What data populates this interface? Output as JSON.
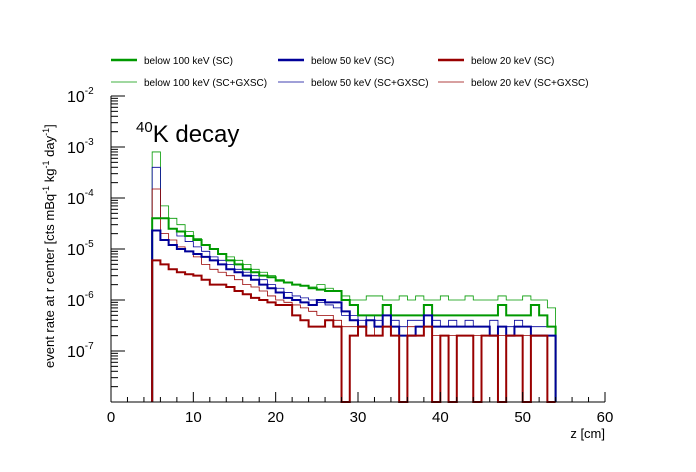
{
  "chart_data": {
    "type": "line",
    "title": "",
    "annotation": {
      "isotope_mass": "40",
      "text": "K decay"
    },
    "xlabel": "z [cm]",
    "ylabel": "event rate at r center [cts mBq",
    "ylabel_sup1": "-1",
    "ylabel_mid": " kg",
    "ylabel_sup2": "-1",
    "ylabel_end": " day",
    "ylabel_sup3": "-1",
    "ylabel_close": "]",
    "xlim": [
      0,
      60
    ],
    "ylim": [
      1e-08,
      0.01
    ],
    "yscale": "log",
    "grid": false,
    "legend_position": "top",
    "x_ticks": [
      {
        "v": 0,
        "label": "0"
      },
      {
        "v": 10,
        "label": "10"
      },
      {
        "v": 20,
        "label": "20"
      },
      {
        "v": 30,
        "label": "30"
      },
      {
        "v": 40,
        "label": "40"
      },
      {
        "v": 50,
        "label": "50"
      },
      {
        "v": 60,
        "label": "60"
      }
    ],
    "y_ticks": [
      {
        "v": 1e-07,
        "base": "10",
        "exp": "-7"
      },
      {
        "v": 1e-06,
        "base": "10",
        "exp": "-6"
      },
      {
        "v": 1e-05,
        "base": "10",
        "exp": "-5"
      },
      {
        "v": 0.0001,
        "base": "10",
        "exp": "-4"
      },
      {
        "v": 0.001,
        "base": "10",
        "exp": "-3"
      },
      {
        "v": 0.01,
        "base": "10",
        "exp": "-2"
      }
    ],
    "bin_edges_start": 5,
    "bin_width": 1,
    "series": [
      {
        "name": "below 100 keV (SC)",
        "color": "#009900",
        "style": "thick",
        "values": [
          4e-05,
          4e-05,
          2.5e-05,
          2.2e-05,
          1.8e-05,
          1.5e-05,
          1.2e-05,
          1e-05,
          8e-06,
          6e-06,
          5e-06,
          4e-06,
          3.5e-06,
          3e-06,
          2.8e-06,
          2.4e-06,
          2.2e-06,
          2e-06,
          1.9e-06,
          1.7e-06,
          1.6e-06,
          1.5e-06,
          1.5e-06,
          1e-06,
          8e-07,
          5e-07,
          5e-07,
          5e-07,
          8e-07,
          5e-07,
          5e-07,
          5e-07,
          5e-07,
          8e-07,
          5e-07,
          5e-07,
          5e-07,
          5e-07,
          5e-07,
          5e-07,
          5e-07,
          5e-07,
          8e-07,
          5e-07,
          5e-07,
          5e-07,
          8e-07,
          5e-07,
          3e-07
        ]
      },
      {
        "name": "below 50 keV (SC)",
        "color": "#000099",
        "style": "thick",
        "values": [
          2.3e-05,
          1.5e-05,
          1.2e-05,
          1e-05,
          9e-06,
          8e-06,
          7e-06,
          6e-06,
          5e-06,
          4e-06,
          3.5e-06,
          3e-06,
          2.5e-06,
          2e-06,
          1.7e-06,
          1.4e-06,
          1.1e-06,
          1e-06,
          9e-07,
          8e-07,
          1e-06,
          9e-07,
          9e-07,
          6e-07,
          4e-07,
          3e-07,
          4e-07,
          3e-07,
          5e-07,
          3e-07,
          2e-07,
          2e-07,
          3e-07,
          5e-07,
          3e-07,
          3e-07,
          3e-07,
          3e-07,
          3e-07,
          3e-07,
          3e-07,
          2e-07,
          3e-07,
          2e-07,
          3e-07,
          3e-07,
          2e-07,
          2e-07,
          2e-07
        ]
      },
      {
        "name": "below 20 keV (SC)",
        "color": "#990000",
        "style": "thick",
        "values": [
          6e-06,
          5e-06,
          4e-06,
          3.5e-06,
          3.2e-06,
          3e-06,
          2.5e-06,
          2e-06,
          2e-06,
          1.8e-06,
          1.5e-06,
          1.3e-06,
          1.1e-06,
          1e-06,
          9e-07,
          8e-07,
          8e-07,
          5e-07,
          4e-07,
          3e-07,
          3e-07,
          4e-07,
          3e-07,
          1e-08,
          2e-07,
          3e-07,
          2e-07,
          2e-07,
          3e-07,
          2e-07,
          1e-08,
          2e-07,
          2e-07,
          3e-07,
          1e-08,
          2e-07,
          1e-08,
          2e-07,
          2e-07,
          1e-08,
          2e-07,
          2e-07,
          1e-08,
          2e-07,
          2e-07,
          1e-08,
          2e-07,
          2e-07,
          1e-08
        ]
      },
      {
        "name": "below 100 keV (SC+GXSC)",
        "color": "#009900",
        "style": "thin",
        "values": [
          0.0008,
          7e-05,
          4e-05,
          3e-05,
          2.2e-05,
          1.6e-05,
          1.2e-05,
          1e-05,
          8e-06,
          7e-06,
          6e-06,
          5e-06,
          4e-06,
          3.5e-06,
          3e-06,
          2.5e-06,
          2.2e-06,
          2e-06,
          1.9e-06,
          1.8e-06,
          2e-06,
          1.7e-06,
          1.5e-06,
          1.2e-06,
          1e-06,
          1e-06,
          1.2e-06,
          1.2e-06,
          1e-06,
          1e-06,
          1.2e-06,
          1e-06,
          1.2e-06,
          1e-06,
          1e-06,
          1.2e-06,
          1e-06,
          1e-06,
          1.2e-06,
          1e-06,
          1e-06,
          1e-06,
          1.2e-06,
          1e-06,
          1e-06,
          1.2e-06,
          1e-06,
          1e-06,
          7e-07
        ]
      },
      {
        "name": "below 50 keV (SC+GXSC)",
        "color": "#000099",
        "style": "thin",
        "values": [
          0.0004,
          4e-05,
          2.5e-05,
          1.8e-05,
          1.4e-05,
          1.1e-05,
          9e-06,
          7e-06,
          6e-06,
          5e-06,
          4e-06,
          3.5e-06,
          3e-06,
          2.5e-06,
          2e-06,
          1.7e-06,
          1.4e-06,
          1.2e-06,
          1.1e-06,
          1e-06,
          9e-07,
          8e-07,
          7e-07,
          5e-07,
          5e-07,
          4e-07,
          5e-07,
          4e-07,
          5e-07,
          4e-07,
          3e-07,
          4e-07,
          4e-07,
          5e-07,
          4e-07,
          3e-07,
          4e-07,
          3e-07,
          4e-07,
          3e-07,
          3e-07,
          4e-07,
          3e-07,
          3e-07,
          4e-07,
          3e-07,
          3e-07,
          3e-07,
          3e-07
        ]
      },
      {
        "name": "below 20 keV (SC+GXSC)",
        "color": "#990000",
        "style": "thin",
        "values": [
          0.00015,
          2e-05,
          1.5e-05,
          1.1e-05,
          9e-06,
          7e-06,
          5e-06,
          4e-06,
          3.5e-06,
          3e-06,
          2.5e-06,
          2e-06,
          1.8e-06,
          1.5e-06,
          1.2e-06,
          1e-06,
          9e-07,
          8e-07,
          7e-07,
          6e-07,
          5e-07,
          5e-07,
          4e-07,
          3e-07,
          3e-07,
          3e-07,
          2e-07,
          3e-07,
          3e-07,
          2e-07,
          2e-07,
          3e-07,
          2e-07,
          3e-07,
          2e-07,
          2e-07,
          2e-07,
          2e-07,
          2e-07,
          2e-07,
          2e-07,
          2e-07,
          2e-07,
          2e-07,
          2e-07,
          2e-07,
          2e-07,
          2e-07,
          2e-07
        ]
      }
    ]
  }
}
